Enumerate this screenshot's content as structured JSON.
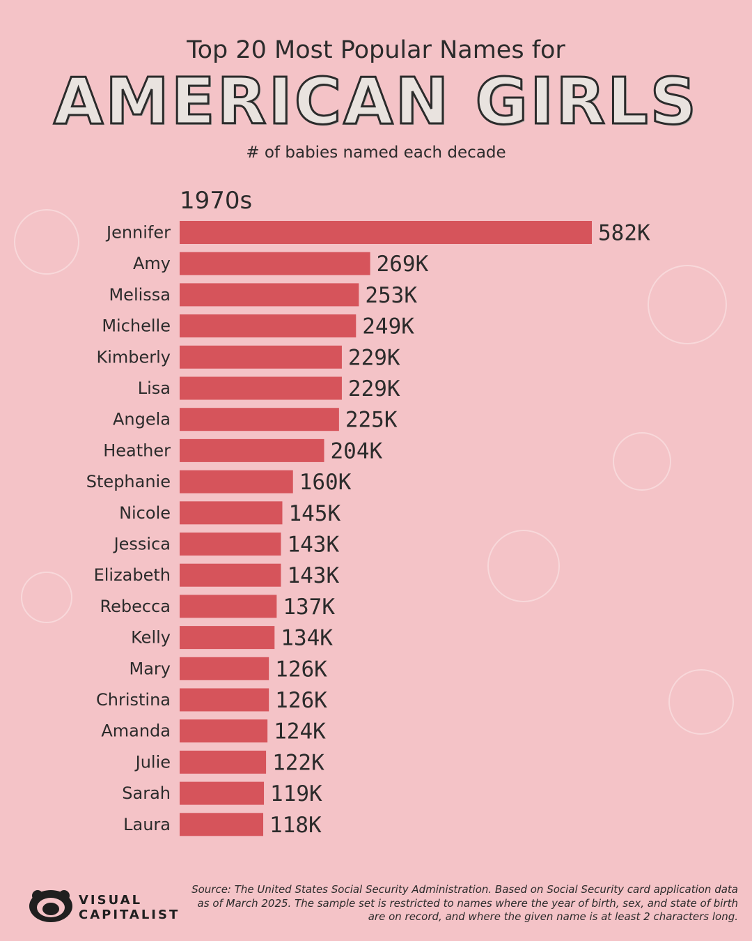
{
  "header": {
    "title_top": "Top 20 Most Popular Names for",
    "title_main": "AMERICAN GIRLS",
    "subtitle": "# of babies named each decade",
    "decade": "1970s"
  },
  "colors": {
    "background": "#f4c3c7",
    "bar": "#d6545b",
    "text": "#2b2b2b"
  },
  "chart_data": {
    "type": "bar",
    "orientation": "horizontal",
    "title": "Top 20 Most Popular Names for AMERICAN GIRLS",
    "subtitle": "# of babies named each decade",
    "decade": "1970s",
    "categories": [
      "Jennifer",
      "Amy",
      "Melissa",
      "Michelle",
      "Kimberly",
      "Lisa",
      "Angela",
      "Heather",
      "Stephanie",
      "Nicole",
      "Jessica",
      "Elizabeth",
      "Rebecca",
      "Kelly",
      "Mary",
      "Christina",
      "Amanda",
      "Julie",
      "Sarah",
      "Laura"
    ],
    "values": [
      582,
      269,
      253,
      249,
      229,
      229,
      225,
      204,
      160,
      145,
      143,
      143,
      137,
      134,
      126,
      126,
      124,
      122,
      119,
      118
    ],
    "value_labels": [
      "582K",
      "269K",
      "253K",
      "249K",
      "229K",
      "229K",
      "225K",
      "204K",
      "160K",
      "145K",
      "143K",
      "143K",
      "137K",
      "134K",
      "126K",
      "126K",
      "124K",
      "122K",
      "119K",
      "118K"
    ],
    "unit": "thousands of babies",
    "xlim": [
      0,
      582
    ],
    "grid": false
  },
  "footer": {
    "logo_line1": "VISUAL",
    "logo_line2": "CAPITALIST",
    "source": "Source: The United States Social Security Administration. Based on Social Security card application data as of March 2025. The sample set is restricted to names where the year of birth, sex, and state of birth are on record, and where the given name is at least 2 characters long."
  }
}
